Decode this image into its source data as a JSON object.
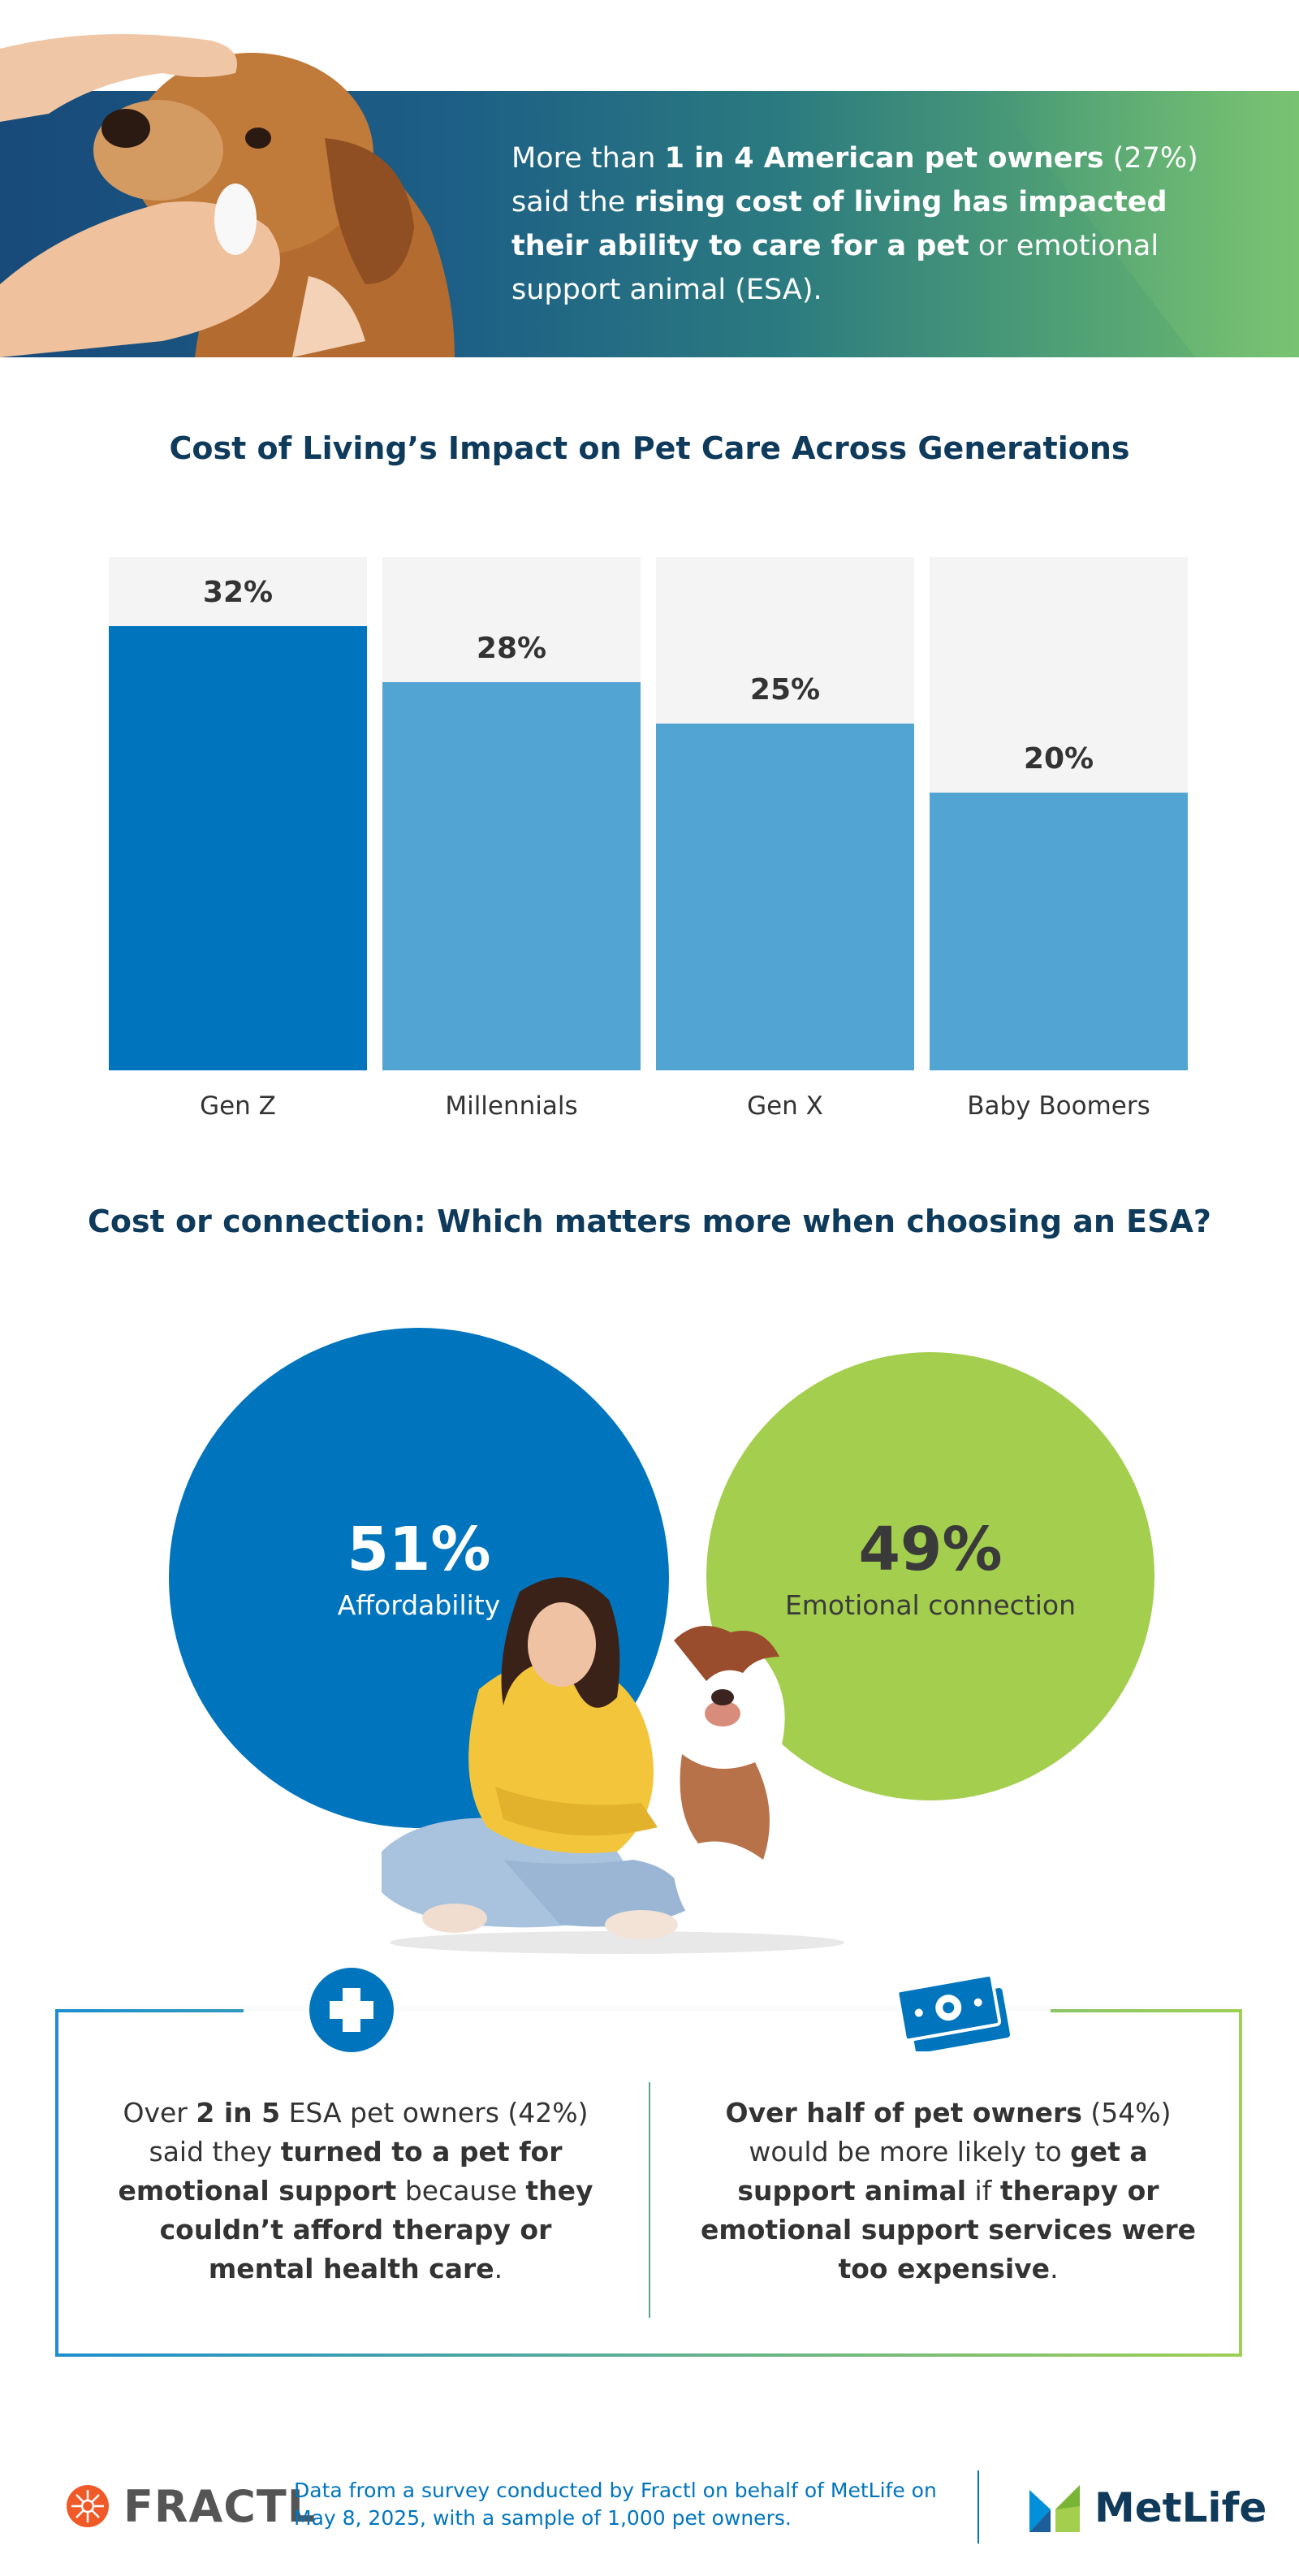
{
  "hero": {
    "t1": "More than ",
    "b1": "1 in 4 American pet owners",
    "t2": " (27%) said the ",
    "b2": "rising cost of living has impacted their ability to care for a pet",
    "t3": " or emotional support animal (ESA)."
  },
  "chart_data": [
    {
      "type": "bar",
      "title": "Cost of Living’s Impact on Pet Care Across Generations",
      "categories": [
        "Gen Z",
        "Millennials",
        "Gen X",
        "Baby Boomers"
      ],
      "values": [
        32,
        28,
        25,
        20
      ],
      "value_labels": [
        "32%",
        "28%",
        "25%",
        "20%"
      ],
      "ylim": [
        0,
        37
      ],
      "xlabel": "",
      "ylabel": "",
      "colors": [
        "#0075be",
        "#52a5d3",
        "#52a5d3",
        "#52a5d3"
      ],
      "track_color": "#f4f4f4"
    },
    {
      "type": "pie",
      "title": "Cost or connection: Which matters more when choosing an ESA?",
      "categories": [
        "Affordability",
        "Emotional connection"
      ],
      "values": [
        51,
        49
      ],
      "value_labels": [
        "51%",
        "49%"
      ],
      "colors": [
        "#0075be",
        "#a4ce4e"
      ]
    }
  ],
  "stats": {
    "left": {
      "t1": "Over ",
      "b1": "2 in 5",
      "t2": " ESA pet owners (42%) said they ",
      "b2": "turned to a pet for emotional support",
      "t3": " because ",
      "b3": "they couldn’t afford therapy or mental health care",
      "t4": "."
    },
    "right": {
      "b1": "Over half of pet owners",
      "t1": " (54%) would be more likely to ",
      "b2": "get a support animal",
      "t2": " if ",
      "b3": "therapy or emotional support services were too expensive",
      "t3": "."
    },
    "icons": [
      "plus-icon",
      "money-icon"
    ]
  },
  "footer": {
    "fractl_logo": "FRACTL",
    "note": "Data from a survey conducted by Fractl on behalf of MetLife on May 8, 2025, with a sample of 1,000 pet owners.",
    "metlife_logo": "MetLife"
  },
  "colors": {
    "navy": "#0e3a5c",
    "blue": "#0075be",
    "light_blue": "#52a5d3",
    "green": "#a4ce4e"
  }
}
